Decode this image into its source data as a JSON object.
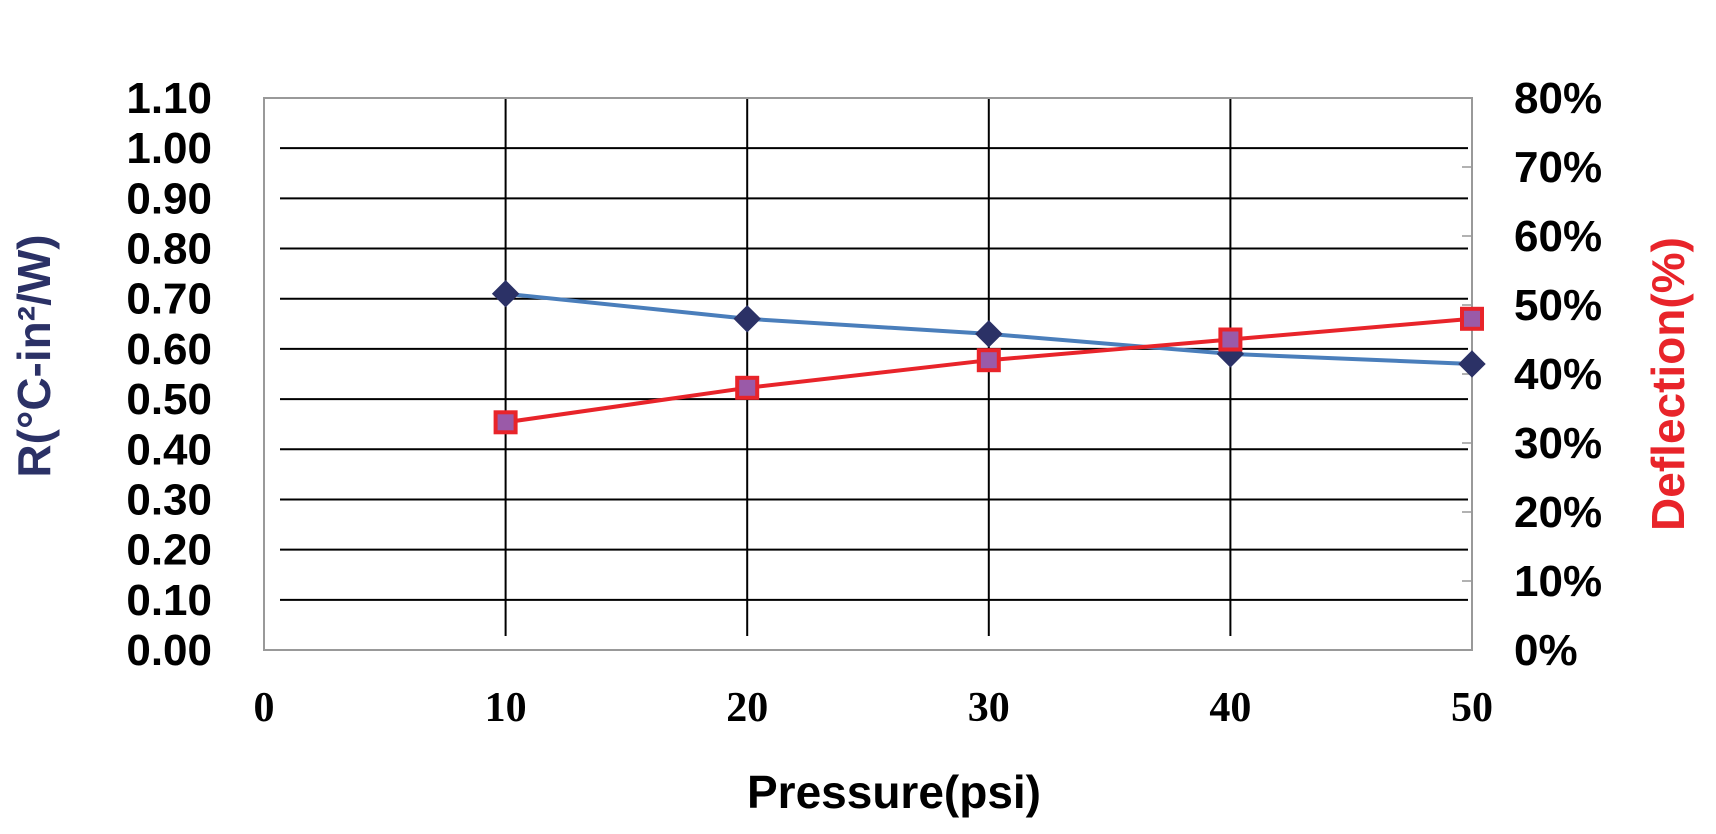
{
  "chart_data": {
    "type": "line",
    "title": "",
    "xlabel": "Pressure(psi)",
    "ylabel_left": "R(°C-in²/W)",
    "ylabel_right": "Deflection(%)",
    "x_ticks": [
      "0",
      "10",
      "20",
      "30",
      "40",
      "50"
    ],
    "x_range": [
      0,
      50
    ],
    "y_left_ticks": [
      "0.00",
      "0.10",
      "0.20",
      "0.30",
      "0.40",
      "0.50",
      "0.60",
      "0.70",
      "0.80",
      "0.90",
      "1.00",
      "1.10"
    ],
    "y_left_range": [
      0,
      1.1
    ],
    "y_right_ticks": [
      "0%",
      "10%",
      "20%",
      "30%",
      "40%",
      "50%",
      "60%",
      "70%",
      "80%"
    ],
    "y_right_range": [
      0,
      80
    ],
    "grid": true,
    "x": [
      10,
      20,
      30,
      40,
      50
    ],
    "series": [
      {
        "axis": "left",
        "values": [
          0.71,
          0.66,
          0.63,
          0.59,
          0.57
        ],
        "line_color": "#4a7ebb",
        "marker": "diamond",
        "marker_color": "#2b3166"
      },
      {
        "axis": "right",
        "values": [
          33,
          38,
          42,
          45,
          48
        ],
        "line_color": "#e8242a",
        "marker": "square",
        "marker_color": "#9a5aa8",
        "marker_edge": "#e8242a"
      }
    ],
    "colors": {
      "left_axis_title": "#2b3166",
      "right_axis_title": "#e8242a",
      "grid": "#000000",
      "frame": "#999999"
    }
  }
}
